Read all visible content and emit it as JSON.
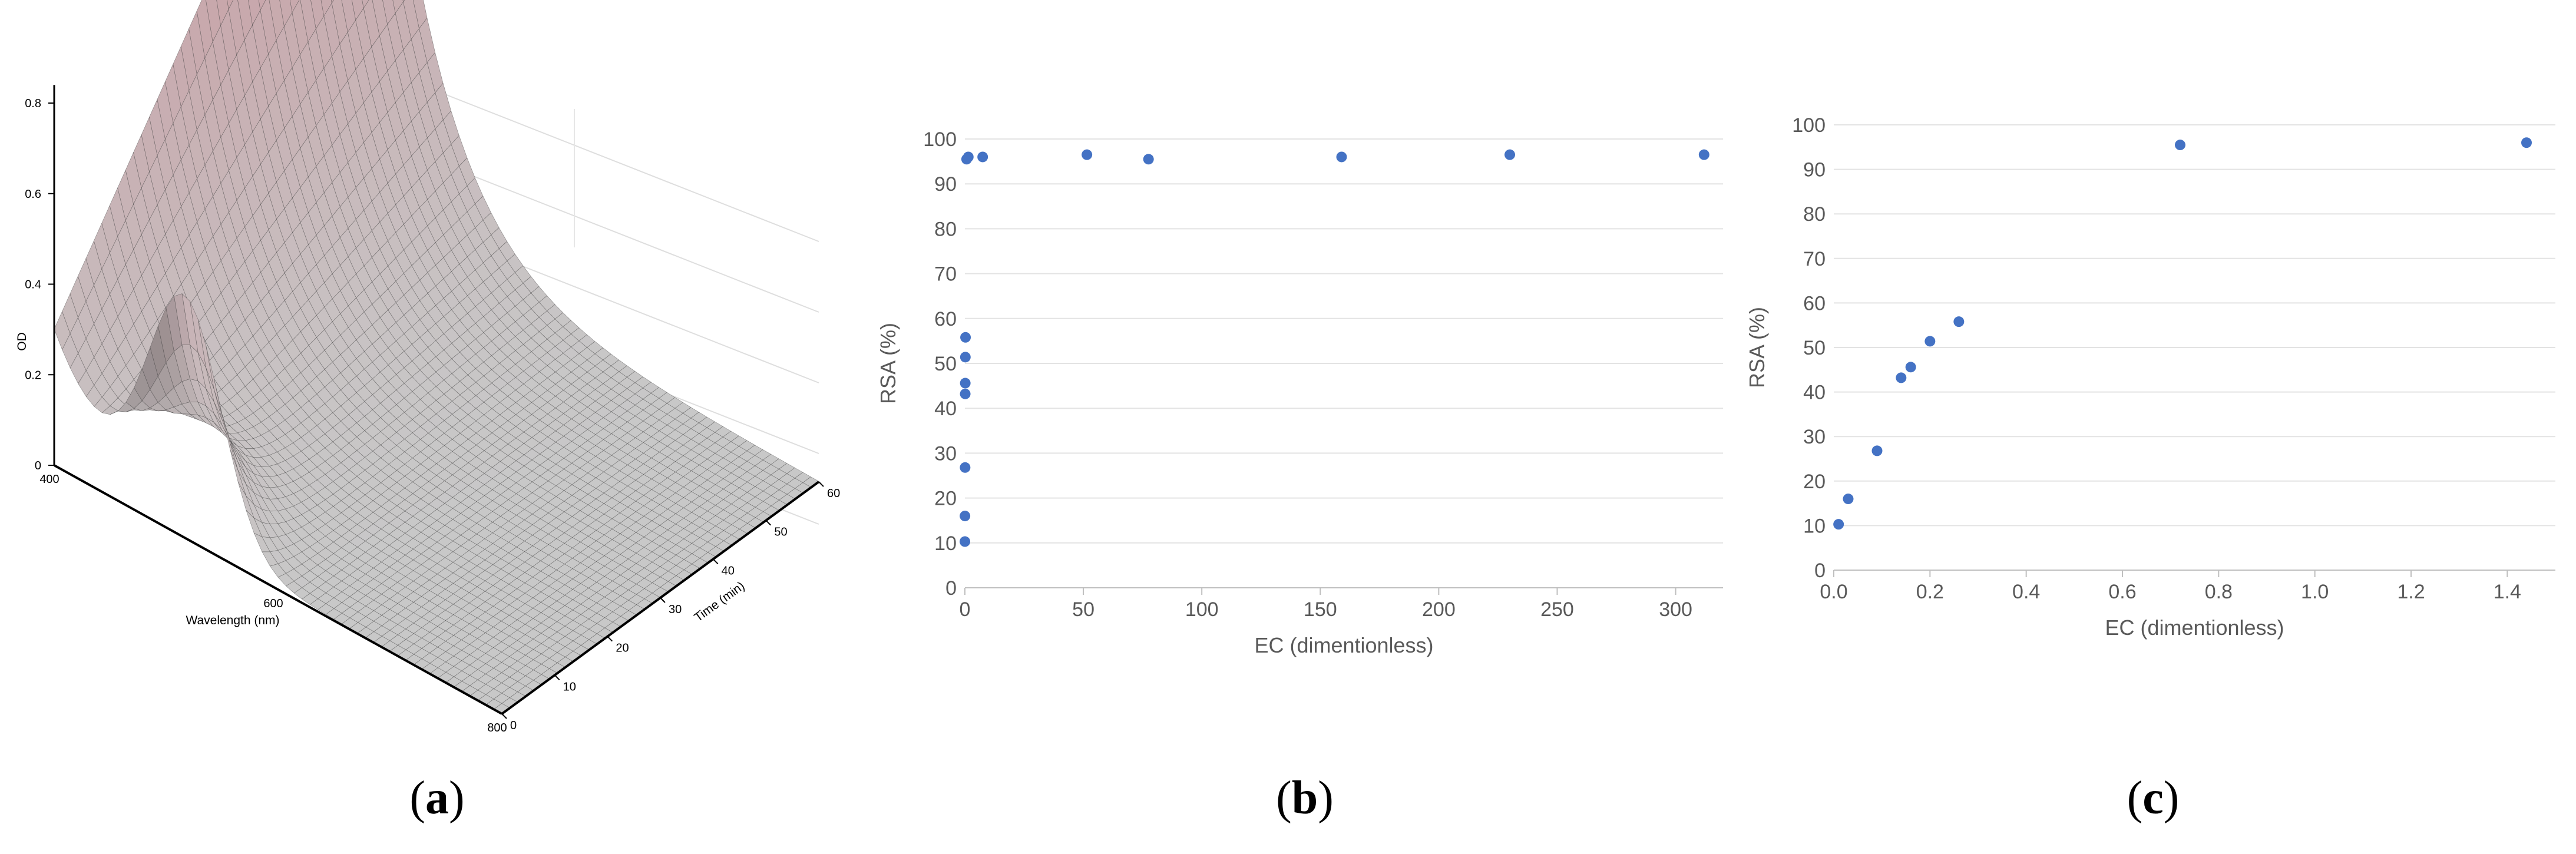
{
  "panels": {
    "a": "a",
    "b": "b",
    "c": "c"
  },
  "chart_data": [
    {
      "type": "surface",
      "panel": "a",
      "title": "",
      "xlabel": "Wavelength (nm)",
      "ylabel": "Time (min)",
      "zlabel": "OD",
      "xlim": [
        400,
        800
      ],
      "ylim": [
        0,
        60
      ],
      "zlim": [
        0,
        0.8
      ],
      "x_ticks": [
        "400",
        "600",
        "800"
      ],
      "y_ticks": [
        "0",
        "10",
        "20",
        "30",
        "40",
        "50",
        "60"
      ],
      "z_ticks": [
        "0",
        "0.2",
        "0.4",
        "0.6",
        "0.8"
      ],
      "peak_wavelength": 517,
      "peak_od_t0": 0.5,
      "od_at_400_t0": 0.3,
      "od_at_400_t60": 1.35,
      "colors": {
        "surface_low": "#c8c8c8",
        "surface_high": "#c89aa0",
        "mesh": "#3a3a3a"
      }
    },
    {
      "type": "scatter",
      "panel": "b",
      "title": "",
      "xlabel": "EC (dimentionless)",
      "ylabel": "RSA (%)",
      "xlim": [
        0,
        320
      ],
      "ylim": [
        0,
        100
      ],
      "x_ticks": [
        "0",
        "50",
        "100",
        "150",
        "200",
        "250",
        "300"
      ],
      "y_ticks": [
        "0",
        "10",
        "20",
        "30",
        "40",
        "50",
        "60",
        "70",
        "80",
        "90",
        "100"
      ],
      "grid": true,
      "color": "#4472c4",
      "series": [
        {
          "x": [
            0.01,
            0.03,
            0.09,
            0.14,
            0.16,
            0.2,
            0.26,
            0.72,
            1.44,
            7.5,
            51.5,
            77.5,
            159,
            230,
            312
          ],
          "y": [
            10.3,
            16,
            26.8,
            43.2,
            45.6,
            51.4,
            55.8,
            95.5,
            96,
            96,
            96.5,
            95.5,
            96,
            96.5,
            96.5
          ]
        }
      ]
    },
    {
      "type": "scatter",
      "panel": "c",
      "title": "",
      "xlabel": "EC (dimentionless)",
      "ylabel": "RSA (%)",
      "xlim": [
        0,
        1.5
      ],
      "ylim": [
        0,
        100
      ],
      "x_ticks": [
        "0.0",
        "0.2",
        "0.4",
        "0.6",
        "0.8",
        "1.0",
        "1.2",
        "1.4"
      ],
      "y_ticks": [
        "0",
        "10",
        "20",
        "30",
        "40",
        "50",
        "60",
        "70",
        "80",
        "90",
        "100"
      ],
      "grid": true,
      "color": "#4472c4",
      "series": [
        {
          "x": [
            0.01,
            0.03,
            0.09,
            0.14,
            0.16,
            0.2,
            0.26,
            0.72,
            1.44
          ],
          "y": [
            10.3,
            16,
            26.8,
            43.2,
            45.6,
            51.4,
            55.8,
            95.5,
            96
          ]
        }
      ]
    }
  ]
}
